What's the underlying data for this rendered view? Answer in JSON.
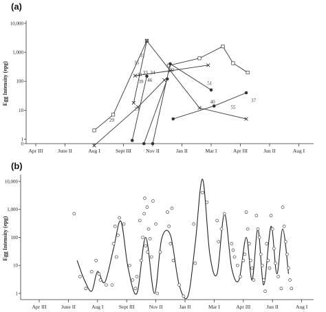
{
  "chart_data": [
    {
      "panel": "(a)",
      "type": "line",
      "ylabel": "Egg Intensity (epg)",
      "yscale": "log",
      "yticks": [
        {
          "label": "0",
          "value": 0.7
        },
        {
          "label": "1",
          "value": 1
        },
        {
          "label": "10",
          "value": 10
        },
        {
          "label": "100",
          "value": 100
        },
        {
          "label": "1,000",
          "value": 1000
        },
        {
          "label": "10,000",
          "value": 10000
        }
      ],
      "xticks": [
        "Apr III",
        "June II",
        "Aug I",
        "Sept III",
        "Nov II",
        "Jan II",
        "Mar I",
        "Apr III",
        "Jun II",
        "Aug I"
      ],
      "series": [
        {
          "marker": "square",
          "points": [
            [
              2,
              2
            ],
            [
              2.65,
              7
            ],
            [
              3.8,
              2500
            ]
          ]
        },
        {
          "marker": "square",
          "points": [
            [
              4.55,
              350
            ],
            [
              5.6,
              620
            ],
            [
              6.4,
              1600
            ],
            [
              6.75,
              420
            ],
            [
              7.25,
              200
            ]
          ]
        },
        {
          "marker": "x",
          "points": [
            [
              3.35,
              18
            ],
            [
              3.8,
              2500
            ],
            [
              5.6,
              12
            ],
            [
              7.2,
              5
            ]
          ]
        },
        {
          "marker": "x",
          "points": [
            [
              3.4,
              155
            ],
            [
              4.6,
              230
            ],
            [
              5.9,
              360
            ]
          ]
        },
        {
          "marker": "dot",
          "points": [
            [
              4.0,
              0.7
            ],
            [
              4.6,
              400
            ],
            [
              6.0,
              50
            ]
          ]
        },
        {
          "marker": "dot",
          "points": [
            [
              4.7,
              5
            ],
            [
              6.1,
              14
            ],
            [
              7.2,
              40
            ]
          ]
        },
        {
          "marker": "dot",
          "points": [
            [
              3.7,
              0.7
            ],
            [
              4.5,
              120
            ]
          ]
        },
        {
          "marker": "dot",
          "points": [
            [
              3.3,
              0.9
            ],
            [
              3.8,
              150
            ]
          ]
        },
        {
          "marker": "x",
          "points": [
            [
              2.0,
              0.6
            ],
            [
              3.5,
              13
            ],
            [
              4.4,
              110
            ]
          ]
        }
      ],
      "annotations": [
        {
          "text": "35",
          "x": 3.45,
          "y": 390
        },
        {
          "text": "31",
          "x": 3.65,
          "y": 680
        },
        {
          "text": "30",
          "x": 3.55,
          "y": 150
        },
        {
          "text": "33",
          "x": 3.75,
          "y": 175
        },
        {
          "text": "39",
          "x": 3.6,
          "y": 85
        },
        {
          "text": "34",
          "x": 4.0,
          "y": 175
        },
        {
          "text": "22",
          "x": 4.65,
          "y": 215
        },
        {
          "text": "46",
          "x": 3.9,
          "y": 95
        },
        {
          "text": "29",
          "x": 2.6,
          "y": 4
        },
        {
          "text": "23",
          "x": 3.45,
          "y": 10
        },
        {
          "text": "51",
          "x": 5.95,
          "y": 75
        },
        {
          "text": "40",
          "x": 6.05,
          "y": 17
        },
        {
          "text": "55",
          "x": 6.75,
          "y": 11
        },
        {
          "text": "37",
          "x": 7.45,
          "y": 19
        }
      ]
    },
    {
      "panel": "(b)",
      "type": "scatter",
      "ylabel": "Egg Intensity (epg)",
      "yscale": "log",
      "yticks": [
        {
          "label": "1",
          "value": 1
        },
        {
          "label": "10",
          "value": 10
        },
        {
          "label": "100",
          "value": 100
        },
        {
          "label": "1,000",
          "value": 1000
        },
        {
          "label": "10,000",
          "value": 10000
        }
      ],
      "xticks": [
        "Apr III",
        "June II",
        "Aug I",
        "Sept III",
        "Nov II",
        "Jan II",
        "Mar I",
        "Apr III",
        "Jun II",
        "Aug I"
      ],
      "trend": [
        [
          1.3,
          15
        ],
        [
          1.55,
          3
        ],
        [
          1.8,
          1.2
        ],
        [
          2.0,
          6
        ],
        [
          2.25,
          2.5
        ],
        [
          2.55,
          40
        ],
        [
          2.8,
          380
        ],
        [
          3.05,
          8
        ],
        [
          3.35,
          1
        ],
        [
          3.65,
          100
        ],
        [
          3.95,
          1
        ],
        [
          4.2,
          90
        ],
        [
          4.5,
          120
        ],
        [
          4.8,
          2
        ],
        [
          5.1,
          0.8
        ],
        [
          5.35,
          60
        ],
        [
          5.6,
          12000
        ],
        [
          5.85,
          25
        ],
        [
          6.1,
          5
        ],
        [
          6.35,
          700
        ],
        [
          6.6,
          8
        ],
        [
          6.85,
          3
        ],
        [
          7.1,
          100
        ],
        [
          7.3,
          3
        ],
        [
          7.5,
          200
        ],
        [
          7.7,
          2
        ],
        [
          7.95,
          250
        ],
        [
          8.15,
          5
        ],
        [
          8.35,
          200
        ],
        [
          8.55,
          5
        ]
      ],
      "points": [
        [
          1.2,
          700
        ],
        [
          1.4,
          4
        ],
        [
          1.6,
          1.5
        ],
        [
          1.8,
          6
        ],
        [
          1.95,
          15
        ],
        [
          2.05,
          5
        ],
        [
          2.1,
          3
        ],
        [
          2.3,
          2
        ],
        [
          2.5,
          2
        ],
        [
          2.55,
          60
        ],
        [
          2.6,
          250
        ],
        [
          2.65,
          20
        ],
        [
          2.7,
          120
        ],
        [
          2.75,
          500
        ],
        [
          2.9,
          300
        ],
        [
          3.1,
          10
        ],
        [
          3.2,
          3
        ],
        [
          3.3,
          1.5
        ],
        [
          3.35,
          4
        ],
        [
          3.45,
          400
        ],
        [
          3.5,
          15
        ],
        [
          3.55,
          100
        ],
        [
          3.6,
          700
        ],
        [
          3.62,
          2500
        ],
        [
          3.65,
          50
        ],
        [
          3.7,
          1200
        ],
        [
          3.72,
          30
        ],
        [
          3.75,
          200
        ],
        [
          3.8,
          90
        ],
        [
          3.85,
          20
        ],
        [
          3.9,
          2000
        ],
        [
          4.0,
          300
        ],
        [
          4.05,
          1
        ],
        [
          4.15,
          30
        ],
        [
          4.4,
          800
        ],
        [
          4.45,
          250
        ],
        [
          4.5,
          60
        ],
        [
          4.55,
          1100
        ],
        [
          4.6,
          15
        ],
        [
          4.8,
          2
        ],
        [
          4.95,
          0.8
        ],
        [
          5.3,
          300
        ],
        [
          5.35,
          12
        ],
        [
          5.6,
          4000
        ],
        [
          5.75,
          1800
        ],
        [
          6.1,
          400
        ],
        [
          6.15,
          70
        ],
        [
          6.25,
          200
        ],
        [
          6.35,
          700
        ],
        [
          6.6,
          60
        ],
        [
          6.65,
          35
        ],
        [
          6.7,
          20
        ],
        [
          6.8,
          10
        ],
        [
          6.9,
          4
        ],
        [
          7.0,
          15
        ],
        [
          7.05,
          25
        ],
        [
          7.1,
          800
        ],
        [
          7.15,
          200
        ],
        [
          7.2,
          60
        ],
        [
          7.25,
          15
        ],
        [
          7.3,
          8
        ],
        [
          7.35,
          3
        ],
        [
          7.45,
          600
        ],
        [
          7.5,
          200
        ],
        [
          7.55,
          100
        ],
        [
          7.6,
          25
        ],
        [
          7.65,
          10
        ],
        [
          7.7,
          3
        ],
        [
          7.75,
          1.2
        ],
        [
          7.8,
          60
        ],
        [
          7.85,
          15
        ],
        [
          7.9,
          8
        ],
        [
          7.95,
          600
        ],
        [
          8.0,
          200
        ],
        [
          8.05,
          40
        ],
        [
          8.1,
          12
        ],
        [
          8.2,
          4
        ],
        [
          8.3,
          1.5
        ],
        [
          8.35,
          1200
        ],
        [
          8.4,
          250
        ],
        [
          8.45,
          70
        ],
        [
          8.5,
          25
        ],
        [
          8.55,
          8
        ],
        [
          8.6,
          3
        ],
        [
          8.65,
          1.5
        ]
      ]
    }
  ]
}
